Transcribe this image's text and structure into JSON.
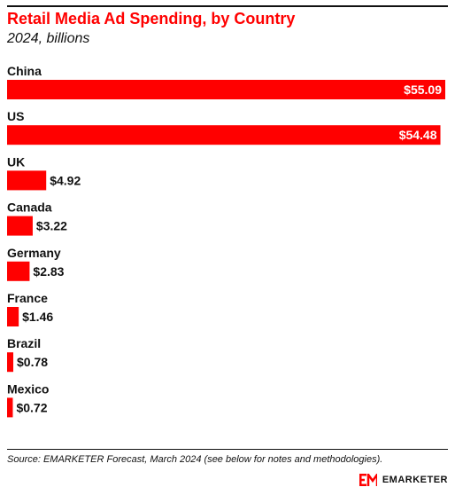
{
  "header": {
    "title": "Retail Media Ad Spending, by Country",
    "subtitle": "2024, billions"
  },
  "chart_data": {
    "type": "bar",
    "orientation": "horizontal",
    "title": "Retail Media Ad Spending, by Country",
    "subtitle": "2024, billions",
    "categories": [
      "China",
      "US",
      "UK",
      "Canada",
      "Germany",
      "France",
      "Brazil",
      "Mexico"
    ],
    "values": [
      55.09,
      54.48,
      4.92,
      3.22,
      2.83,
      1.46,
      0.78,
      0.72
    ],
    "value_labels": [
      "$55.09",
      "$54.48",
      "$4.92",
      "$3.22",
      "$2.83",
      "$1.46",
      "$0.78",
      "$0.72"
    ],
    "xlim": [
      0,
      55.09
    ],
    "grid": false,
    "legend": "none",
    "bar_color": "#ff0000"
  },
  "footer": {
    "source": "Source: EMARKETER Forecast, March 2024 (see below for notes and methodologies).",
    "brand": "EMARKETER"
  },
  "colors": {
    "accent": "#ff0000",
    "text": "#111111"
  }
}
